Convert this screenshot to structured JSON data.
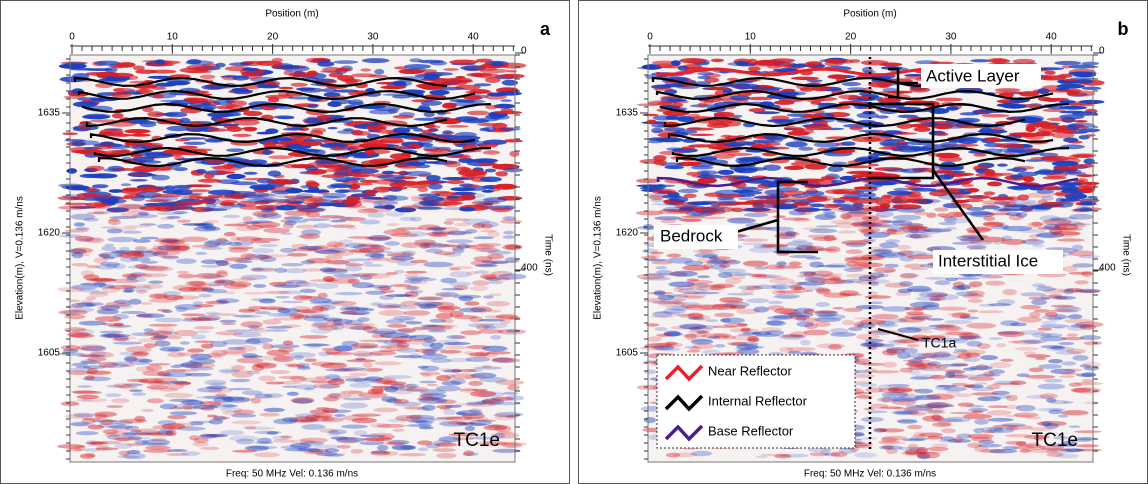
{
  "panels": [
    {
      "letter": "a",
      "x_axis_title": "Position (m)",
      "y_axis_title": "Elevation(m), V=0.136 m/ns",
      "y2_axis_title": "Time (ns)",
      "x_ticks": [
        0,
        10,
        20,
        30,
        40
      ],
      "y_ticks": [
        1635,
        1620,
        1605
      ],
      "y2_ticks": [
        0,
        400
      ],
      "footer": "Freq: 50 MHz Vel: 0.136 m/ns",
      "label": "TC1e"
    },
    {
      "letter": "b",
      "x_axis_title": "Position (m)",
      "y_axis_title": "Elevation(m), V=0.136 m/ns",
      "y2_axis_title": "Time (ns)",
      "x_ticks": [
        0,
        10,
        20,
        30,
        40
      ],
      "y_ticks": [
        1635,
        1620,
        1605
      ],
      "y2_ticks": [
        0,
        400
      ],
      "footer": "Freq: 50 MHz Vel: 0.136 m/ns",
      "label": "TC1e",
      "annotations": {
        "active_layer": "Active Layer",
        "interstitial_ice": "Interstitial Ice",
        "bedrock": "Bedrock",
        "line": "TC1a"
      },
      "legend": [
        {
          "name": "Near Reflector",
          "color": "#e8202a"
        },
        {
          "name": "Internal Reflector",
          "color": "#000000"
        },
        {
          "name": "Base Reflector",
          "color": "#4b1d8c"
        }
      ]
    }
  ]
}
